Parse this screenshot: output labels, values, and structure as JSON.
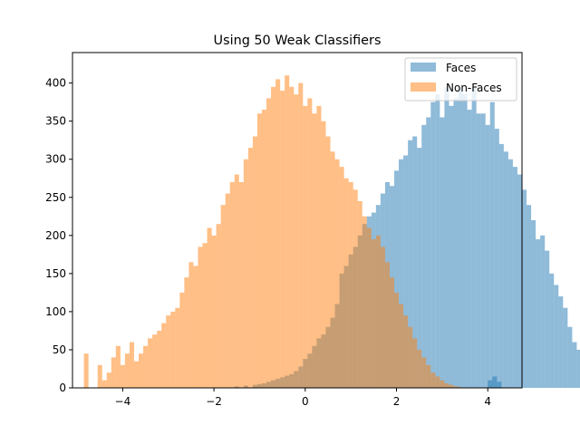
{
  "chart_data": {
    "type": "bar",
    "subtype": "overlapping-histogram",
    "title": "Using 50 Weak Classifiers",
    "xlabel": "",
    "ylabel": "",
    "xlim": [
      -5.1,
      4.75
    ],
    "ylim": [
      0,
      440
    ],
    "xticks": [
      -4,
      -2,
      0,
      2,
      4
    ],
    "xtick_labels": [
      "−4",
      "−2",
      "0",
      "2",
      "4"
    ],
    "yticks": [
      0,
      50,
      100,
      150,
      200,
      250,
      300,
      350,
      400
    ],
    "ytick_labels": [
      "0",
      "50",
      "100",
      "150",
      "200",
      "250",
      "300",
      "350",
      "400"
    ],
    "grid": false,
    "legend_position": "top-right",
    "alpha": 0.5,
    "series": [
      {
        "name": "Faces",
        "color": "#1f77b4",
        "x_start": -1.55,
        "bin_width": 0.1,
        "values": [
          2,
          0,
          3,
          0,
          4,
          5,
          6,
          8,
          10,
          12,
          14,
          16,
          18,
          22,
          28,
          38,
          45,
          55,
          65,
          70,
          80,
          92,
          110,
          150,
          160,
          175,
          185,
          200,
          215,
          225,
          230,
          240,
          255,
          270,
          265,
          285,
          300,
          305,
          325,
          330,
          315,
          345,
          355,
          375,
          385,
          355,
          395,
          370,
          380,
          395,
          385,
          365,
          395,
          360,
          360,
          345,
          375,
          340,
          320,
          310,
          300,
          290,
          280,
          260,
          240,
          220,
          195,
          200,
          180,
          150,
          135,
          120,
          105,
          80,
          60,
          50,
          30,
          15,
          10,
          5
        ],
        "end_bins": [
          {
            "x": 4.0,
            "value": 10
          },
          {
            "x": 4.1,
            "value": 15
          },
          {
            "x": 4.2,
            "value": 8
          }
        ]
      },
      {
        "name": "Non-Faces",
        "color": "#ff7f0e",
        "x_start": -4.85,
        "bin_width": 0.1,
        "values": [
          45,
          0,
          0,
          30,
          10,
          20,
          40,
          55,
          30,
          45,
          60,
          35,
          45,
          55,
          65,
          70,
          75,
          85,
          95,
          100,
          105,
          125,
          145,
          165,
          160,
          185,
          190,
          210,
          200,
          215,
          240,
          255,
          270,
          280,
          270,
          300,
          315,
          330,
          360,
          365,
          380,
          395,
          405,
          390,
          410,
          395,
          385,
          400,
          370,
          380,
          360,
          370,
          350,
          330,
          310,
          300,
          290,
          275,
          270,
          260,
          245,
          225,
          210,
          195,
          200,
          185,
          165,
          145,
          125,
          110,
          95,
          80,
          65,
          50,
          40,
          30,
          20,
          15,
          10,
          6,
          4,
          2,
          1
        ]
      }
    ]
  }
}
